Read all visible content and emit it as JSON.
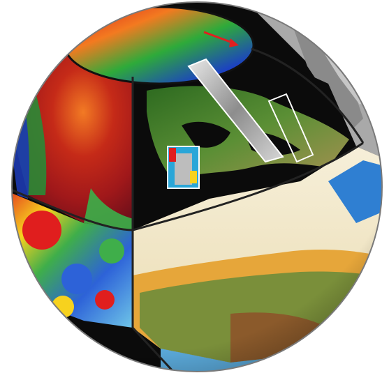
{
  "figure": {
    "subject": "globe-composite",
    "colors": {
      "background": "#ffffff",
      "ocean": "#000000",
      "land_green": "#3f7a2c",
      "desert": "#f3ead2",
      "atmosphere_red": "#b3201a",
      "atmosphere_green": "#2fa33a",
      "atmosphere_blue": "#1d3fc4",
      "radar_gray": "#9a9a9a",
      "outline": "#222222",
      "arrow": "#e02020"
    },
    "icons": {
      "arrow": "red-arrow-icon"
    }
  }
}
